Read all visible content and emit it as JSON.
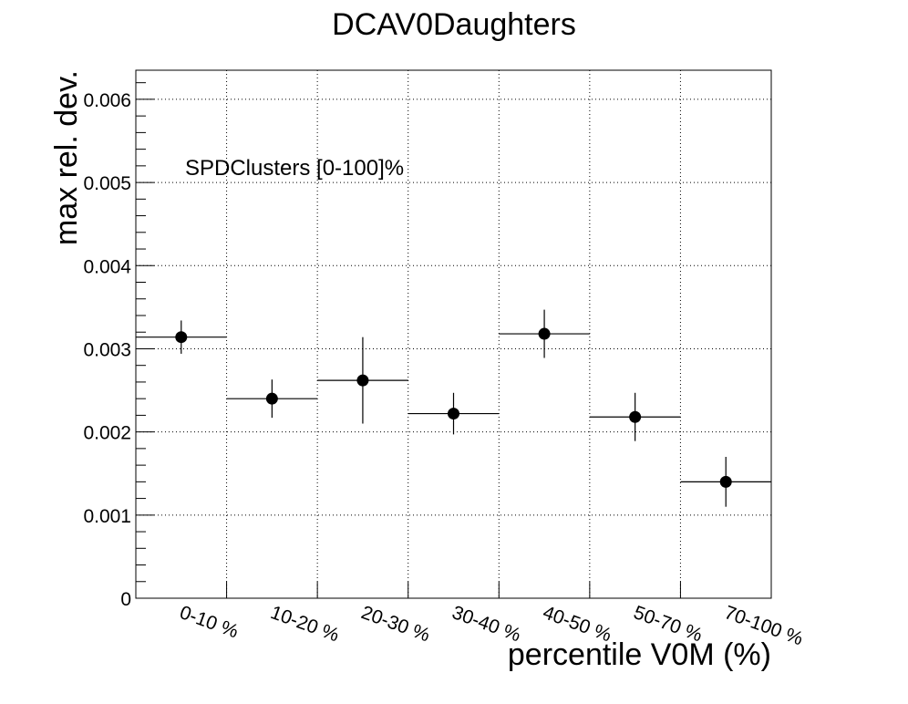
{
  "chart_data": {
    "type": "scatter",
    "title": "DCAV0Daughters",
    "xlabel": "percentile V0M (%)",
    "ylabel": "max rel. dev.",
    "annotation": "SPDClusters [0-100]%",
    "categories": [
      "0-10 %",
      "10-20 %",
      "20-30 %",
      "30-40 %",
      "40-50 %",
      "50-70 %",
      "70-100 %"
    ],
    "values": [
      0.00314,
      0.0024,
      0.00262,
      0.00222,
      0.00318,
      0.00218,
      0.0014
    ],
    "errors": [
      0.0002,
      0.00023,
      0.00052,
      0.00025,
      0.00029,
      0.00029,
      0.0003
    ],
    "ylim": [
      0,
      0.00635
    ],
    "yticks": [
      {
        "value": 0,
        "label": "0"
      },
      {
        "value": 0.001,
        "label": "0.001"
      },
      {
        "value": 0.002,
        "label": "0.002"
      },
      {
        "value": 0.003,
        "label": "0.003"
      },
      {
        "value": 0.004,
        "label": "0.004"
      },
      {
        "value": 0.005,
        "label": "0.005"
      },
      {
        "value": 0.006,
        "label": "0.006"
      }
    ],
    "grid": true,
    "legend": "none"
  }
}
